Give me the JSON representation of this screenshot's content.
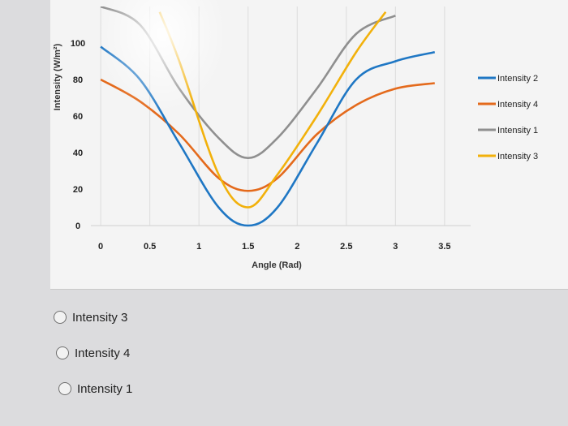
{
  "chart_data": {
    "type": "line",
    "xlabel": "Angle (Rad)",
    "ylabel": "Intensity (W/m²)",
    "x_ticks": [
      "0",
      "0.5",
      "1",
      "1.5",
      "2",
      "2.5",
      "3",
      "3.5"
    ],
    "y_ticks": [
      "0",
      "20",
      "40",
      "60",
      "80",
      "100"
    ],
    "xlim": [
      -0.1,
      3.6
    ],
    "ylim": [
      0,
      100
    ],
    "grid": "vertical",
    "legend_position": "right",
    "series": [
      {
        "name": "Intensity 2",
        "color": "#1f77c4",
        "x": [
          0,
          0.4,
          0.8,
          1.2,
          1.5,
          1.8,
          2.2,
          2.6,
          3.0,
          3.4
        ],
        "y": [
          98,
          80,
          45,
          10,
          0,
          10,
          45,
          80,
          90,
          95
        ]
      },
      {
        "name": "Intensity 4",
        "color": "#e46a1c",
        "x": [
          0,
          0.4,
          0.8,
          1.2,
          1.5,
          1.8,
          2.2,
          2.6,
          3.0,
          3.4
        ],
        "y": [
          80,
          68,
          50,
          26,
          19,
          26,
          50,
          66,
          75,
          78
        ]
      },
      {
        "name": "Intensity 1",
        "color": "#8f8f8f",
        "x": [
          0,
          0.4,
          0.8,
          1.2,
          1.5,
          1.8,
          2.2,
          2.6,
          3.0
        ],
        "y": [
          120,
          110,
          75,
          48,
          37,
          48,
          75,
          105,
          115
        ]
      },
      {
        "name": "Intensity 3",
        "color": "#f2b10b",
        "x": [
          0.6,
          0.8,
          1.2,
          1.5,
          1.8,
          2.2,
          2.6,
          2.9
        ],
        "y": [
          117,
          90,
          28,
          10,
          28,
          60,
          95,
          117
        ]
      }
    ]
  },
  "options": [
    {
      "label": "Intensity 3"
    },
    {
      "label": "Intensity 4"
    },
    {
      "label": "Intensity 1"
    }
  ]
}
